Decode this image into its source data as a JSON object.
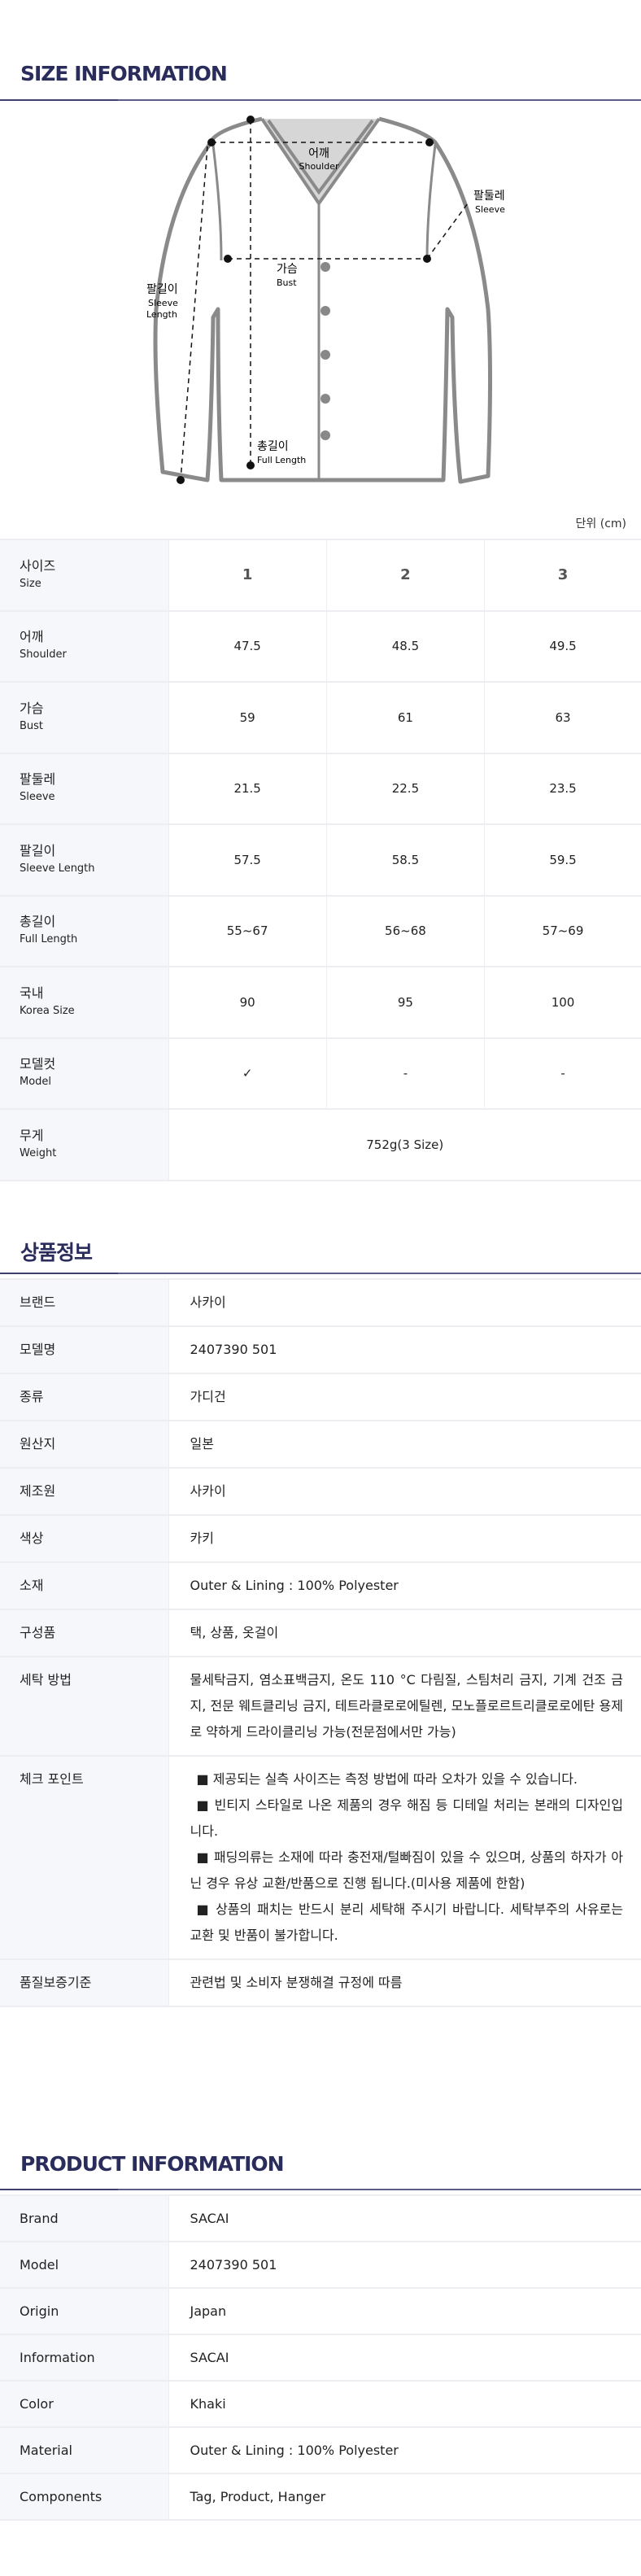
{
  "size_info": {
    "title": "SIZE INFORMATION",
    "diagram_labels": {
      "shoulder_ko": "어깨",
      "shoulder_en": "Shoulder",
      "sleeve_ko": "팔둘레",
      "sleeve_en": "Sleeve",
      "bust_ko": "가슴",
      "bust_en": "Bust",
      "sleeve_length_ko": "팔길이",
      "sleeve_length_en1": "Sleeve",
      "sleeve_length_en2": "Length",
      "full_length_ko": "총길이",
      "full_length_en": "Full Length"
    },
    "unit": "단위 (cm)",
    "rows": [
      {
        "ko": "사이즈",
        "en": "Size",
        "values": [
          "1",
          "2",
          "3"
        ]
      },
      {
        "ko": "어깨",
        "en": "Shoulder",
        "values": [
          "47.5",
          "48.5",
          "49.5"
        ]
      },
      {
        "ko": "가슴",
        "en": "Bust",
        "values": [
          "59",
          "61",
          "63"
        ]
      },
      {
        "ko": "팔둘레",
        "en": "Sleeve",
        "values": [
          "21.5",
          "22.5",
          "23.5"
        ]
      },
      {
        "ko": "팔길이",
        "en": "Sleeve Length",
        "values": [
          "57.5",
          "58.5",
          "59.5"
        ]
      },
      {
        "ko": "총길이",
        "en": "Full Length",
        "values": [
          "55~67",
          "56~68",
          "57~69"
        ]
      },
      {
        "ko": "국내",
        "en": "Korea Size",
        "values": [
          "90",
          "95",
          "100"
        ]
      },
      {
        "ko": "모델컷",
        "en": "Model",
        "values": [
          "✓",
          "-",
          "-"
        ]
      }
    ],
    "weight": {
      "ko": "무게",
      "en": "Weight",
      "value": "752g(3 Size)"
    }
  },
  "product_info_ko": {
    "title": "상품정보",
    "rows": [
      {
        "label": "브랜드",
        "value": "사카이"
      },
      {
        "label": "모델명",
        "value": "2407390 501"
      },
      {
        "label": "종류",
        "value": "가디건"
      },
      {
        "label": "원산지",
        "value": "일본"
      },
      {
        "label": "제조원",
        "value": "사카이"
      },
      {
        "label": "색상",
        "value": "카키"
      },
      {
        "label": "소재",
        "value": "Outer & Lining : 100% Polyester"
      },
      {
        "label": "구성품",
        "value": "택, 상품, 옷걸이"
      },
      {
        "label": "세탁 방법",
        "value": "물세탁금지, 염소표백금지, 온도 110 °C 다림질, 스팀처리 금지, 기계 건조 금지, 전문 웨트클리닝 금지, 테트라클로로에틸렌, 모노플로르트리클로로에탄 용제로 약하게 드라이클리닝 가능(전문점에서만 가능)"
      }
    ],
    "check_point": {
      "label": "체크 포인트",
      "items": [
        "■ 제공되는 실측 사이즈는 측정 방법에 따라 오차가 있을 수 있습니다.",
        "■ 빈티지 스타일로 나온 제품의 경우 해짐 등 디테일 처리는 본래의 디자인입니다.",
        "■ 패딩의류는 소재에 따라 충전재/털빠짐이 있을 수 있으며, 상품의 하자가 아닌 경우 유상 교환/반품으로 진행 됩니다.(미사용 제품에 한함)",
        "■ 상품의 패치는 반드시 분리 세탁해 주시기 바랍니다. 세탁부주의 사유로는 교환 및 반품이 불가합니다."
      ]
    },
    "quality": {
      "label": "품질보증기준",
      "value": "관련법 및 소비자 분쟁해결 규정에 따름"
    }
  },
  "product_info_en": {
    "title": "PRODUCT INFORMATION",
    "rows": [
      {
        "label": "Brand",
        "value": "SACAI"
      },
      {
        "label": "Model",
        "value": "2407390 501"
      },
      {
        "label": "Origin",
        "value": "Japan"
      },
      {
        "label": "Information",
        "value": "SACAI"
      },
      {
        "label": "Color",
        "value": "Khaki"
      },
      {
        "label": "Material",
        "value": "Outer & Lining : 100% Polyester"
      },
      {
        "label": "Components",
        "value": "Tag, Product, Hanger"
      }
    ]
  },
  "colors": {
    "title": "#2a2c5c",
    "label_bg": "#f6f7fb",
    "border": "#eeeef2"
  }
}
